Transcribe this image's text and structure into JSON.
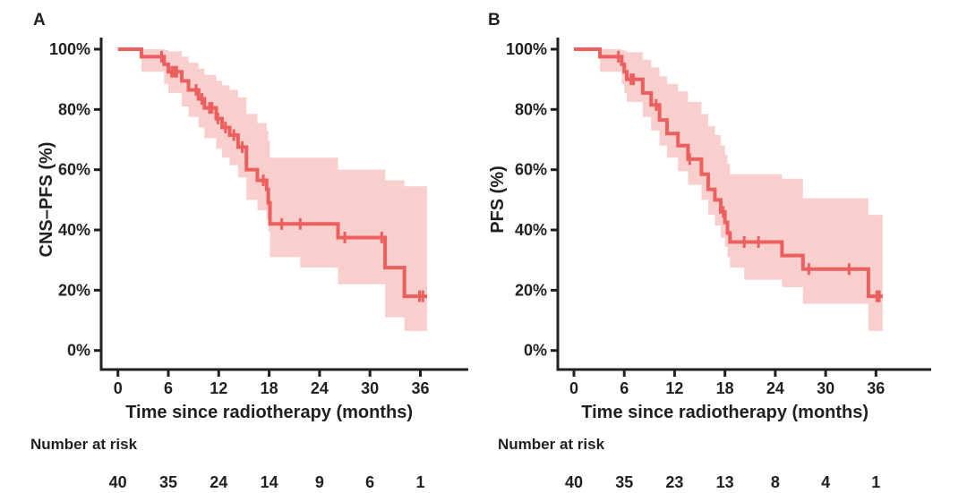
{
  "figure": {
    "background": "#ffffff",
    "colors": {
      "curve": "#eb5f5f",
      "band": "#f9cfcd",
      "axis": "#231f20",
      "text": "#231f20"
    }
  },
  "chart_data": [
    {
      "panel_label": "A",
      "type": "line",
      "variant": "kaplan_meier_step",
      "ylabel": "CNS–PFS (%)",
      "xlabel": "Time since radiotherapy (months)",
      "xlim": [
        0,
        41.5
      ],
      "ylim": [
        0,
        100
      ],
      "grid": false,
      "x_ticks": [
        0,
        6,
        12,
        18,
        24,
        30,
        36
      ],
      "x_tick_labels": [
        "0",
        "6",
        "12",
        "18",
        "24",
        "30",
        "36"
      ],
      "y_ticks": [
        0,
        20,
        40,
        60,
        80,
        100
      ],
      "y_tick_labels": [
        "0%",
        "20%",
        "40%",
        "60%",
        "80%",
        "100%"
      ],
      "steps": [
        [
          0,
          100
        ],
        [
          2.8,
          97.5
        ],
        [
          5.5,
          95
        ],
        [
          6.0,
          92.5
        ],
        [
          7.6,
          89.5
        ],
        [
          8.4,
          86.5
        ],
        [
          9.6,
          83.5
        ],
        [
          10.3,
          80.5
        ],
        [
          11.7,
          77
        ],
        [
          12.4,
          74
        ],
        [
          13.3,
          71.5
        ],
        [
          14.3,
          67.5
        ],
        [
          15.3,
          60
        ],
        [
          16.6,
          56.5
        ],
        [
          17.7,
          53.5
        ],
        [
          17.9,
          49
        ],
        [
          18.1,
          42
        ],
        [
          26.2,
          37.5
        ],
        [
          31.8,
          27.5
        ],
        [
          34.1,
          18
        ]
      ],
      "curve_end": 36.8,
      "censors": [
        [
          5.2,
          97.5
        ],
        [
          6.4,
          92.5
        ],
        [
          6.7,
          92.5
        ],
        [
          7.0,
          92.5
        ],
        [
          9.3,
          86.5
        ],
        [
          10.0,
          83.5
        ],
        [
          10.9,
          80.5
        ],
        [
          11.2,
          80.5
        ],
        [
          11.9,
          77
        ],
        [
          12.8,
          74
        ],
        [
          13.8,
          71.5
        ],
        [
          14.8,
          67.5
        ],
        [
          17.3,
          56.5
        ],
        [
          19.5,
          42
        ],
        [
          21.7,
          42
        ],
        [
          27.0,
          37.5
        ],
        [
          31.4,
          37.5
        ],
        [
          35.9,
          18
        ],
        [
          36.3,
          18
        ]
      ],
      "band": [
        [
          2.8,
          100,
          92.5
        ],
        [
          5.5,
          99.7,
          88.5
        ],
        [
          6.0,
          99.3,
          85.5
        ],
        [
          7.6,
          97.5,
          81
        ],
        [
          8.4,
          95.5,
          77.5
        ],
        [
          9.6,
          93.5,
          74
        ],
        [
          10.3,
          91.5,
          70.5
        ],
        [
          11.7,
          89.5,
          67
        ],
        [
          12.4,
          88,
          64
        ],
        [
          13.3,
          86.5,
          61.5
        ],
        [
          14.3,
          84,
          57.5
        ],
        [
          15.3,
          78.5,
          50
        ],
        [
          16.6,
          75.5,
          46.5
        ],
        [
          17.7,
          73,
          43.5
        ],
        [
          17.9,
          69.5,
          39.5
        ],
        [
          18.1,
          64,
          31
        ],
        [
          21.7,
          64,
          27.5
        ],
        [
          26.2,
          60,
          22
        ],
        [
          31.8,
          56.5,
          11
        ],
        [
          34.1,
          54.5,
          6.5
        ]
      ],
      "number_at_risk": {
        "label": "Number at risk",
        "times": [
          0,
          6,
          12,
          18,
          24,
          30,
          36
        ],
        "values": [
          40,
          35,
          24,
          14,
          9,
          6,
          1
        ]
      }
    },
    {
      "panel_label": "B",
      "type": "line",
      "variant": "kaplan_meier_step",
      "ylabel": "PFS (%)",
      "xlabel": "Time since radiotherapy (months)",
      "xlim": [
        0,
        41.5
      ],
      "ylim": [
        0,
        100
      ],
      "grid": false,
      "x_ticks": [
        0,
        6,
        12,
        18,
        24,
        30,
        36
      ],
      "x_tick_labels": [
        "0",
        "6",
        "12",
        "18",
        "24",
        "30",
        "36"
      ],
      "y_ticks": [
        0,
        20,
        40,
        60,
        80,
        100
      ],
      "y_tick_labels": [
        "0%",
        "20%",
        "40%",
        "60%",
        "80%",
        "100%"
      ],
      "steps": [
        [
          0,
          100
        ],
        [
          3.1,
          97.5
        ],
        [
          5.7,
          95
        ],
        [
          6.0,
          92.5
        ],
        [
          6.3,
          90
        ],
        [
          8.2,
          85.5
        ],
        [
          9.2,
          81.5
        ],
        [
          10.2,
          76.5
        ],
        [
          11.1,
          72
        ],
        [
          12.4,
          68
        ],
        [
          13.6,
          63.5
        ],
        [
          15.2,
          58.5
        ],
        [
          16.0,
          53.5
        ],
        [
          16.8,
          50
        ],
        [
          17.5,
          46
        ],
        [
          18.0,
          42.5
        ],
        [
          18.3,
          39
        ],
        [
          18.6,
          36
        ],
        [
          24.8,
          31.5
        ],
        [
          27.3,
          27
        ],
        [
          35.1,
          18
        ]
      ],
      "curve_end": 36.8,
      "censors": [
        [
          5.3,
          97.5
        ],
        [
          6.8,
          90
        ],
        [
          7.1,
          90
        ],
        [
          9.8,
          81.5
        ],
        [
          13.8,
          63.5
        ],
        [
          17.8,
          46
        ],
        [
          20.3,
          36
        ],
        [
          22.0,
          36
        ],
        [
          28.0,
          27
        ],
        [
          32.8,
          27
        ],
        [
          36.1,
          18
        ],
        [
          36.4,
          18
        ]
      ],
      "band": [
        [
          3.1,
          100,
          92.5
        ],
        [
          5.7,
          99.7,
          88.5
        ],
        [
          6.0,
          99.4,
          85.5
        ],
        [
          6.3,
          99,
          82.5
        ],
        [
          8.2,
          96.5,
          77.5
        ],
        [
          9.2,
          94,
          73
        ],
        [
          10.2,
          91,
          68
        ],
        [
          11.1,
          88.5,
          64
        ],
        [
          12.4,
          86,
          59.5
        ],
        [
          13.6,
          82.5,
          55
        ],
        [
          15.2,
          78.5,
          50
        ],
        [
          16.0,
          74.5,
          45
        ],
        [
          16.8,
          71.5,
          41.5
        ],
        [
          17.5,
          68,
          37.5
        ],
        [
          18.0,
          65,
          34.5
        ],
        [
          18.3,
          62,
          31
        ],
        [
          18.6,
          58.5,
          27.5
        ],
        [
          20.3,
          58.5,
          23.5
        ],
        [
          24.8,
          57,
          21
        ],
        [
          27.3,
          50.5,
          15.5
        ],
        [
          35.1,
          45,
          6.5
        ]
      ],
      "number_at_risk": {
        "label": "Number at risk",
        "times": [
          0,
          6,
          12,
          18,
          24,
          30,
          36
        ],
        "values": [
          40,
          35,
          23,
          13,
          8,
          4,
          1
        ]
      }
    }
  ]
}
